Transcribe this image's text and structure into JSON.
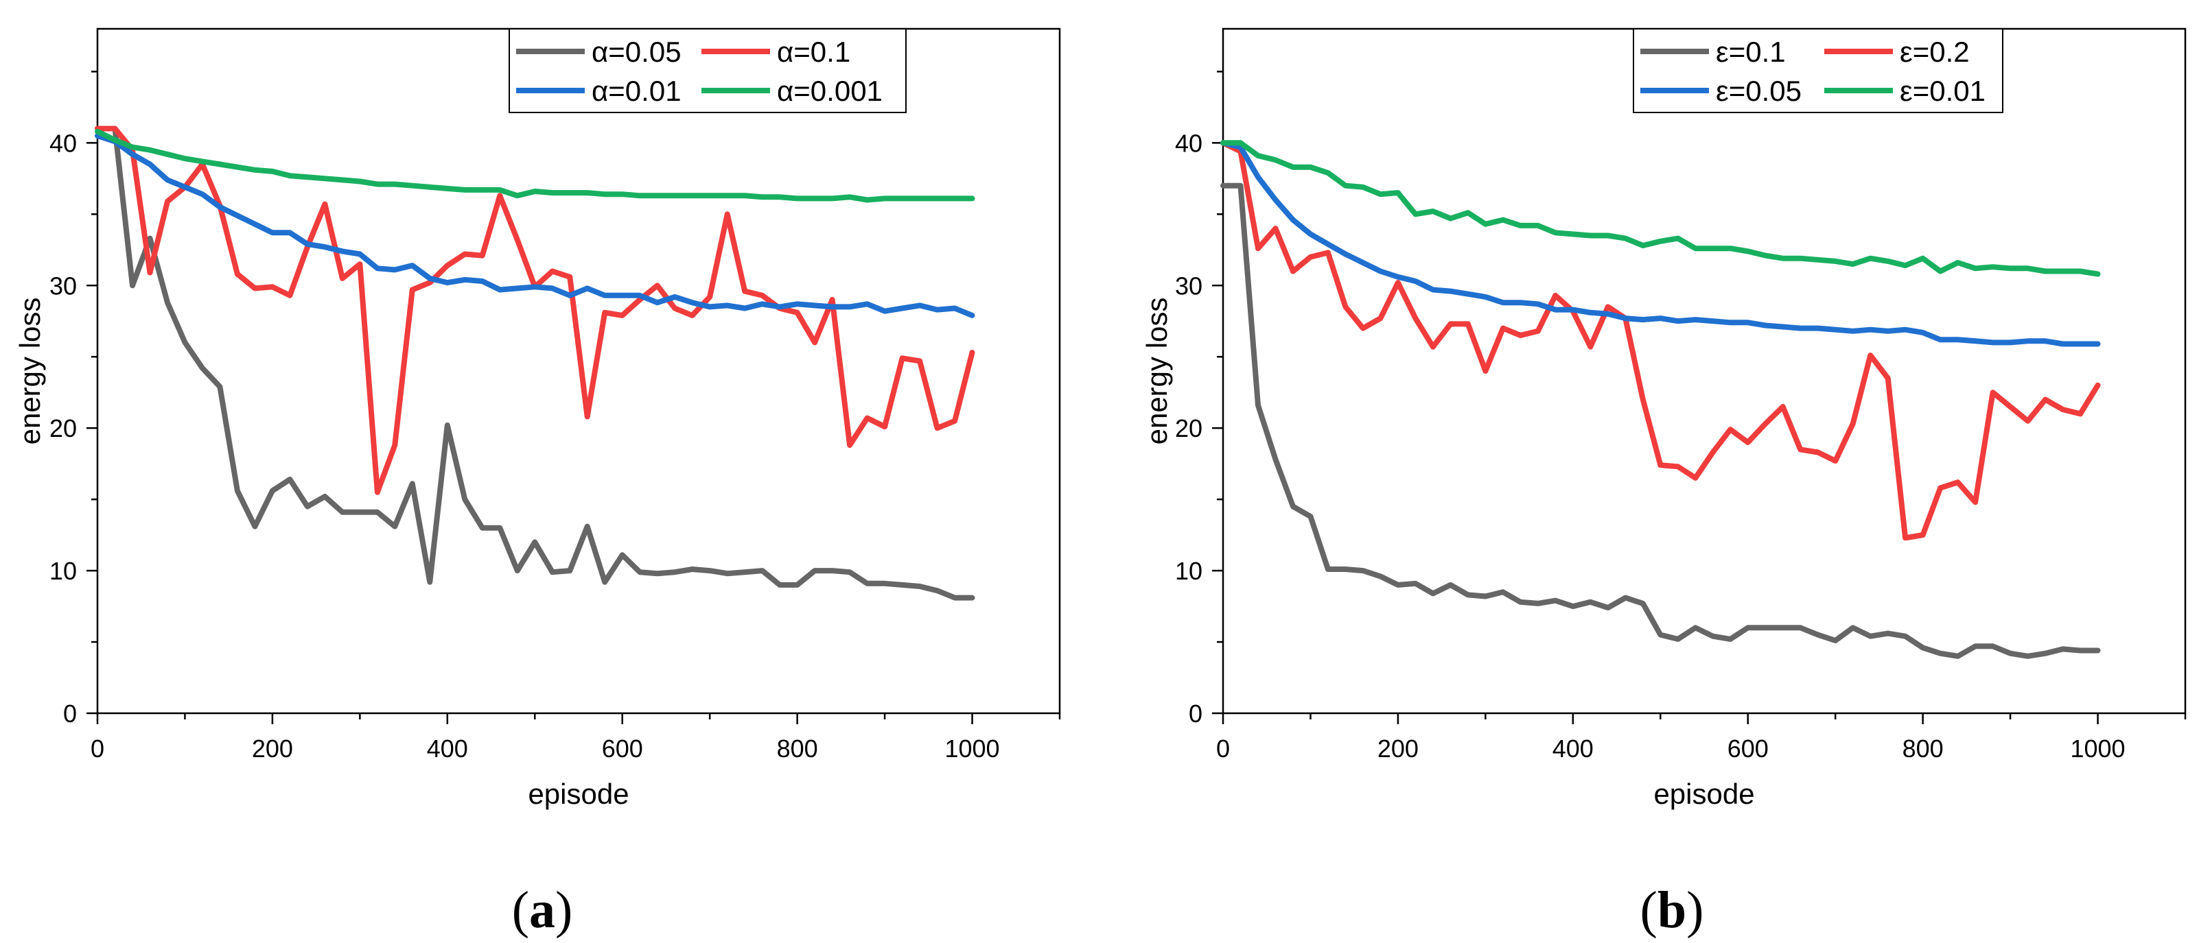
{
  "chart_data": [
    {
      "type": "line",
      "panel_label": "a",
      "xlabel": "episode",
      "ylabel": "energy loss",
      "xlim": [
        0,
        1100
      ],
      "ylim": [
        0,
        48
      ],
      "x_ticks": [
        0,
        200,
        400,
        600,
        800,
        1000
      ],
      "y_ticks": [
        0,
        10,
        20,
        30,
        40
      ],
      "grid": false,
      "legend_position": "top-right",
      "x": [
        0,
        20,
        40,
        60,
        80,
        100,
        120,
        140,
        160,
        180,
        200,
        220,
        240,
        260,
        280,
        300,
        320,
        340,
        360,
        380,
        400,
        420,
        440,
        460,
        480,
        500,
        520,
        540,
        560,
        580,
        600,
        620,
        640,
        660,
        680,
        700,
        720,
        740,
        760,
        780,
        800,
        820,
        840,
        860,
        880,
        900,
        920,
        940,
        960,
        980,
        1000
      ],
      "series": [
        {
          "name": "α=0.05",
          "color": "#666666",
          "values": [
            41,
            41,
            30,
            33.3,
            28.8,
            26,
            24.2,
            22.9,
            15.6,
            13.1,
            15.6,
            16.4,
            14.5,
            15.2,
            14.1,
            14.1,
            14.1,
            13.1,
            16.1,
            9.2,
            20.2,
            15,
            13,
            13,
            10,
            12,
            9.9,
            10,
            13.1,
            9.2,
            11.1,
            9.9,
            9.8,
            9.9,
            10.1,
            10,
            9.8,
            9.9,
            10,
            9,
            9,
            10,
            10,
            9.9,
            9.1,
            9.1,
            9,
            8.9,
            8.6,
            8.1,
            8.1
          ]
        },
        {
          "name": "α=0.1",
          "color": "#f03c3c",
          "values": [
            41,
            41,
            39.5,
            30.9,
            35.9,
            36.9,
            38.5,
            35.6,
            30.8,
            29.8,
            29.9,
            29.3,
            32.7,
            35.7,
            30.5,
            31.5,
            15.5,
            18.8,
            29.7,
            30.2,
            31.4,
            32.2,
            32.1,
            36.3,
            33.2,
            29.9,
            31,
            30.6,
            20.8,
            28.1,
            27.9,
            29,
            30,
            28.4,
            27.9,
            29.2,
            35,
            29.6,
            29.3,
            28.4,
            28.1,
            26,
            29,
            18.8,
            20.7,
            20.1,
            24.9,
            24.7,
            20,
            20.5,
            25.3
          ]
        },
        {
          "name": "α=0.01",
          "color": "#2070d0",
          "values": [
            40.5,
            40.1,
            39.2,
            38.5,
            37.4,
            36.9,
            36.4,
            35.5,
            34.9,
            34.3,
            33.7,
            33.7,
            32.9,
            32.7,
            32.4,
            32.2,
            31.2,
            31.1,
            31.4,
            30.5,
            30.2,
            30.4,
            30.3,
            29.7,
            29.8,
            29.9,
            29.8,
            29.3,
            29.8,
            29.3,
            29.3,
            29.3,
            28.8,
            29.2,
            28.8,
            28.5,
            28.6,
            28.4,
            28.7,
            28.5,
            28.7,
            28.6,
            28.5,
            28.5,
            28.7,
            28.2,
            28.4,
            28.6,
            28.3,
            28.4,
            27.9
          ]
        },
        {
          "name": "α=0.001",
          "color": "#18b060",
          "values": [
            40.8,
            40.2,
            39.7,
            39.5,
            39.2,
            38.9,
            38.7,
            38.5,
            38.3,
            38.1,
            38,
            37.7,
            37.6,
            37.5,
            37.4,
            37.3,
            37.1,
            37.1,
            37,
            36.9,
            36.8,
            36.7,
            36.7,
            36.7,
            36.3,
            36.6,
            36.5,
            36.5,
            36.5,
            36.4,
            36.4,
            36.3,
            36.3,
            36.3,
            36.3,
            36.3,
            36.3,
            36.3,
            36.2,
            36.2,
            36.1,
            36.1,
            36.1,
            36.2,
            36,
            36.1,
            36.1,
            36.1,
            36.1,
            36.1,
            36.1
          ]
        }
      ]
    },
    {
      "type": "line",
      "panel_label": "b",
      "xlabel": "episode",
      "ylabel": "energy loss",
      "xlim": [
        0,
        1100
      ],
      "ylim": [
        0,
        48
      ],
      "x_ticks": [
        0,
        200,
        400,
        600,
        800,
        1000
      ],
      "y_ticks": [
        0,
        10,
        20,
        30,
        40
      ],
      "grid": false,
      "legend_position": "top-right",
      "x": [
        0,
        20,
        40,
        60,
        80,
        100,
        120,
        140,
        160,
        180,
        200,
        220,
        240,
        260,
        280,
        300,
        320,
        340,
        360,
        380,
        400,
        420,
        440,
        460,
        480,
        500,
        520,
        540,
        560,
        580,
        600,
        620,
        640,
        660,
        680,
        700,
        720,
        740,
        760,
        780,
        800,
        820,
        840,
        860,
        880,
        900,
        920,
        940,
        960,
        980,
        1000
      ],
      "series": [
        {
          "name": "ε=0.1",
          "color": "#666666",
          "values": [
            37,
            37,
            21.6,
            17.8,
            14.5,
            13.8,
            10.1,
            10.1,
            10,
            9.6,
            9,
            9.1,
            8.4,
            9,
            8.3,
            8.2,
            8.5,
            7.8,
            7.7,
            7.9,
            7.5,
            7.8,
            7.4,
            8.1,
            7.7,
            5.5,
            5.2,
            6,
            5.4,
            5.2,
            6,
            6,
            6,
            6,
            5.5,
            5.1,
            6,
            5.4,
            5.6,
            5.4,
            4.6,
            4.2,
            4,
            4.7,
            4.7,
            4.2,
            4,
            4.2,
            4.5,
            4.4,
            4.4
          ]
        },
        {
          "name": "ε=0.2",
          "color": "#f03c3c",
          "values": [
            40,
            39.4,
            32.6,
            34,
            31,
            32,
            32.3,
            28.5,
            27,
            27.7,
            30.2,
            27.7,
            25.7,
            27.3,
            27.3,
            24,
            27,
            26.5,
            26.8,
            29.3,
            28.2,
            25.7,
            28.5,
            27.7,
            22,
            17.4,
            17.3,
            16.5,
            18.3,
            19.9,
            19,
            20.3,
            21.5,
            18.5,
            18.3,
            17.7,
            20.3,
            25.1,
            23.5,
            12.3,
            12.5,
            15.8,
            16.2,
            14.8,
            22.5,
            21.5,
            20.5,
            22,
            21.3,
            21,
            23
          ]
        },
        {
          "name": "ε=0.05",
          "color": "#2070d0",
          "values": [
            40,
            39.7,
            37.6,
            36,
            34.6,
            33.6,
            32.9,
            32.2,
            31.6,
            31,
            30.6,
            30.3,
            29.7,
            29.6,
            29.4,
            29.2,
            28.8,
            28.8,
            28.7,
            28.3,
            28.3,
            28.1,
            28,
            27.7,
            27.6,
            27.7,
            27.5,
            27.6,
            27.5,
            27.4,
            27.4,
            27.2,
            27.1,
            27,
            27,
            26.9,
            26.8,
            26.9,
            26.8,
            26.9,
            26.7,
            26.2,
            26.2,
            26.1,
            26,
            26,
            26.1,
            26.1,
            25.9,
            25.9,
            25.9
          ]
        },
        {
          "name": "ε=0.01",
          "color": "#18b060",
          "values": [
            40,
            40,
            39.1,
            38.8,
            38.3,
            38.3,
            37.9,
            37,
            36.9,
            36.4,
            36.5,
            35,
            35.2,
            34.7,
            35.1,
            34.3,
            34.6,
            34.2,
            34.2,
            33.7,
            33.6,
            33.5,
            33.5,
            33.3,
            32.8,
            33.1,
            33.3,
            32.6,
            32.6,
            32.6,
            32.4,
            32.1,
            31.9,
            31.9,
            31.8,
            31.7,
            31.5,
            31.9,
            31.7,
            31.4,
            31.9,
            31,
            31.6,
            31.2,
            31.3,
            31.2,
            31.2,
            31,
            31,
            31,
            30.8
          ]
        }
      ]
    }
  ]
}
